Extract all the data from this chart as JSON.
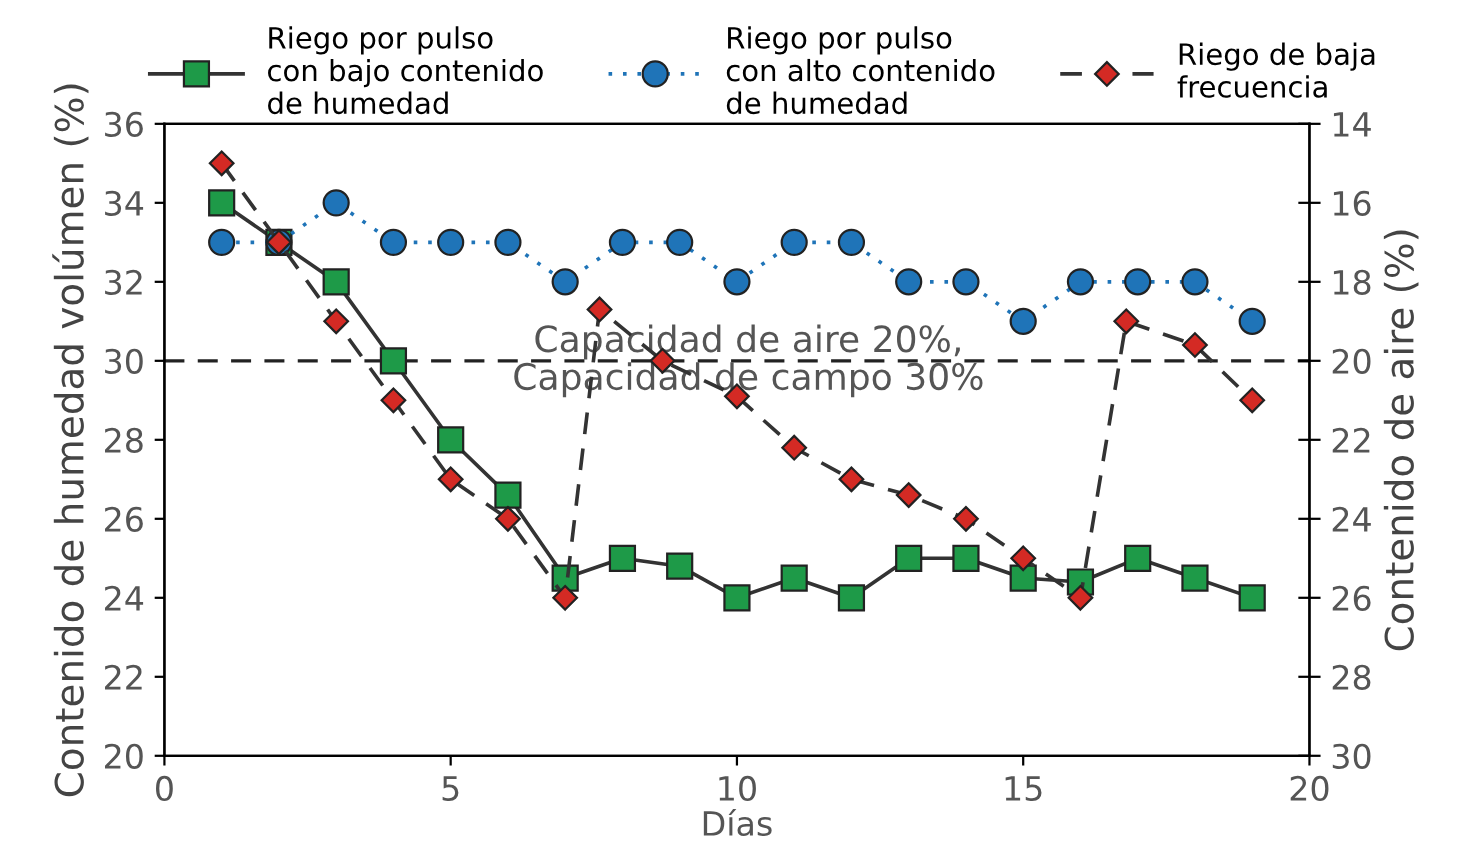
{
  "chart_data": {
    "type": "line",
    "xlabel": "Días",
    "ylabel": "Contenido de humedad volúmen (%)",
    "y2label": "Contenido de aire (%)",
    "xlim": [
      0,
      20
    ],
    "xticks": [
      0,
      5,
      10,
      15,
      20
    ],
    "ylim": [
      20,
      36
    ],
    "yticks": [
      20,
      22,
      24,
      26,
      28,
      30,
      32,
      34,
      36
    ],
    "y2lim": [
      30,
      14
    ],
    "y2ticks": [
      14,
      16,
      18,
      20,
      22,
      24,
      26,
      28,
      30
    ],
    "legend": "top",
    "grid": false,
    "ref_lines": [
      {
        "axis": "y",
        "value": 30,
        "label": "Capacidad de aire 20%,\nCapacidad de campo 30%",
        "color": "#222222",
        "line_style": "dashed"
      }
    ],
    "series": [
      {
        "name": "Riego por pulso\ncon bajo contenido\nde humedad",
        "color": "#1e9a48",
        "marker": "square",
        "line_style": "solid",
        "x": [
          1,
          2,
          3,
          4,
          5,
          6,
          7,
          8,
          9,
          10,
          11,
          12,
          13,
          14,
          15,
          16,
          17,
          18,
          19
        ],
        "values": [
          34,
          33,
          32,
          30,
          28,
          26.6,
          24.5,
          25,
          24.8,
          24,
          24.5,
          24,
          25,
          25,
          24.5,
          24.4,
          25,
          24.5,
          24
        ]
      },
      {
        "name": "Riego por pulso\ncon alto contenido\nde humedad",
        "color": "#1f74b8",
        "marker": "circle",
        "line_style": "dotted",
        "x": [
          1,
          2,
          3,
          4,
          5,
          6,
          7,
          8,
          9,
          10,
          11,
          12,
          13,
          14,
          15,
          16,
          17,
          18,
          19
        ],
        "values": [
          33,
          33,
          34,
          33,
          33,
          33,
          32,
          33,
          33,
          32,
          33,
          33,
          32,
          32,
          31,
          32,
          32,
          32,
          31
        ]
      },
      {
        "name": "Riego de baja\nfrecuencia",
        "color": "#d42a24",
        "marker": "diamond",
        "line_style": "dashed",
        "x": [
          1,
          2,
          3,
          4,
          5,
          6,
          7,
          7.6,
          8.7,
          10,
          11,
          12,
          13,
          14,
          15,
          16,
          16.8,
          18,
          19
        ],
        "values": [
          35,
          33,
          31,
          29,
          27,
          26,
          24,
          31.3,
          30,
          29.1,
          27.8,
          27,
          26.6,
          26,
          25,
          24,
          31,
          30.4,
          29
        ]
      }
    ]
  }
}
